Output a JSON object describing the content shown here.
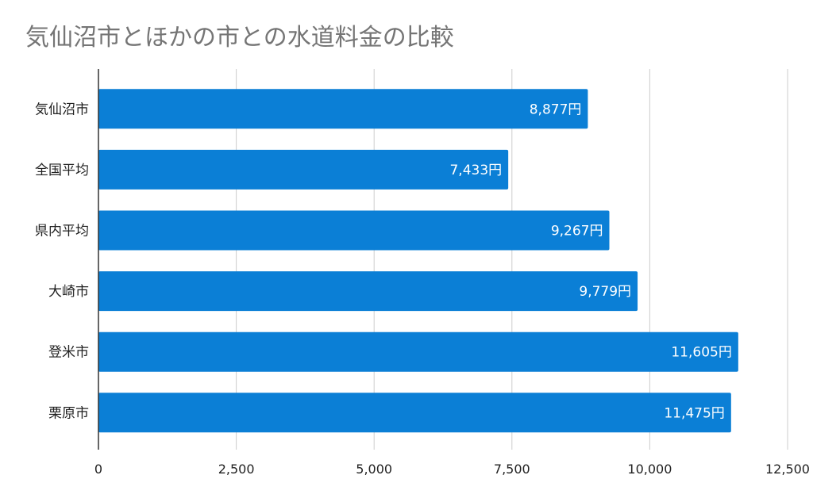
{
  "chart_data": {
    "type": "bar",
    "orientation": "horizontal",
    "title": "気仙沼市とほかの市との水道料金の比較",
    "categories": [
      "気仙沼市",
      "全国平均",
      "県内平均",
      "大崎市",
      "登米市",
      "栗原市"
    ],
    "values": [
      8877,
      7433,
      9267,
      9779,
      11605,
      11475
    ],
    "data_labels": [
      "8,877円",
      "7,433円",
      "9,267円",
      "9,779円",
      "11,605円",
      "11,475円"
    ],
    "xlim": [
      0,
      12500
    ],
    "x_ticks": [
      0,
      2500,
      5000,
      7500,
      10000,
      12500
    ],
    "x_tick_labels": [
      "0",
      "2,500",
      "5,000",
      "7,500",
      "10,000",
      "12,500"
    ],
    "grid": true,
    "bar_color": "#0b7fd6",
    "legend": "none"
  }
}
